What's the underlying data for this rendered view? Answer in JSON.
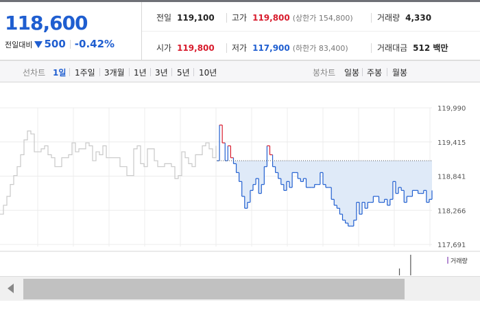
{
  "quote": {
    "price": "118,600",
    "change_label": "전일대비",
    "change_value": "500",
    "change_percent": "-0.42%",
    "change_direction": "down"
  },
  "stats": {
    "prev_close": {
      "label": "전일",
      "value": "119,100"
    },
    "open": {
      "label": "시가",
      "value": "119,800"
    },
    "high": {
      "label": "고가",
      "value": "119,800",
      "sub": "(상한가 154,800)"
    },
    "low": {
      "label": "저가",
      "value": "117,900",
      "sub": "(하한가 83,400)"
    },
    "volume": {
      "label": "거래량",
      "value": "4,330"
    },
    "trade_value": {
      "label": "거래대금",
      "value": "512 백만"
    }
  },
  "tabs": {
    "line_label": "선차트",
    "line_items": [
      "1일",
      "1주일",
      "3개월",
      "1년",
      "3년",
      "5년",
      "10년"
    ],
    "active": "1일",
    "candle_label": "봉차트",
    "candle_items": [
      "일봉",
      "주봉",
      "월봉"
    ]
  },
  "colors": {
    "up": "#d81b2c",
    "down": "#1f5ed0",
    "prev_line": "#c8c8c8",
    "fill_below": "#dfeaf8",
    "volume": "#b48cd2"
  },
  "chart_data": {
    "type": "line",
    "y_ticks": [
      "119,990",
      "119,415",
      "118,841",
      "118,266",
      "117,691"
    ],
    "ylim": [
      117691,
      119990
    ],
    "reference_line": 119100,
    "legend": [
      "거래량"
    ],
    "grid": true,
    "series": [
      {
        "values": [
          118200,
          118350,
          118500,
          118700,
          118850,
          119000,
          119200,
          119450,
          119600,
          119550,
          119250,
          119250,
          119300,
          119350,
          119200,
          119150,
          119000,
          119000,
          119150,
          119150,
          119200,
          119400,
          119250,
          119300,
          119300,
          119400,
          119350,
          119100,
          119250,
          119200,
          119350,
          119150,
          119150,
          119150,
          119150,
          119000,
          119000,
          118850,
          118850,
          119300,
          119350,
          119050,
          119000,
          119300,
          119300,
          119100,
          119000,
          119000,
          119050,
          119050,
          119000,
          118800,
          118850,
          119250,
          119150,
          119050,
          119000,
          119200,
          119200,
          119350,
          119400,
          119300,
          119150,
          119350
        ]
      },
      {
        "values": [
          119100,
          119700,
          119400,
          119100,
          119350,
          119150,
          119050,
          118900,
          118750,
          118500,
          118300,
          118400,
          118600,
          118700,
          118800,
          118550,
          118700,
          119000,
          119350,
          119200,
          119000,
          118900,
          118800,
          118700,
          118600,
          118750,
          118650,
          118900,
          118900,
          118800,
          118750,
          118800,
          118650,
          118650,
          118650,
          118700,
          118700,
          118900,
          118700,
          118650,
          118650,
          118450,
          118350,
          118300,
          118200,
          118100,
          118050,
          118000,
          118000,
          118100,
          118400,
          118200,
          118400,
          118300,
          118400,
          118400,
          118500,
          118500,
          118400,
          118400,
          118450,
          118350,
          118450,
          118750,
          118550,
          118650,
          118600,
          118400,
          118500,
          118500,
          118600,
          118600,
          118550,
          118550,
          118600,
          118400,
          118450,
          118600
        ]
      }
    ],
    "volume": [
      0,
      0,
      0,
      0,
      0,
      0,
      0,
      0,
      0,
      0,
      0,
      0,
      0,
      0,
      0,
      0,
      0,
      0,
      0,
      0,
      0,
      0,
      0,
      0,
      0,
      0,
      0,
      0,
      0,
      0,
      0,
      0,
      0,
      0,
      0,
      0,
      0,
      0,
      0,
      0,
      0,
      0,
      0,
      0,
      0,
      0,
      0,
      0,
      0,
      0,
      0,
      0,
      0,
      0,
      0,
      0,
      0,
      0,
      0,
      0,
      0,
      0,
      0,
      0,
      0,
      0,
      0,
      0,
      0,
      0,
      0,
      0,
      0,
      0,
      0,
      0,
      0,
      0,
      0,
      0,
      0,
      0,
      0,
      0,
      0,
      0,
      0,
      0,
      0,
      0,
      0,
      0,
      0,
      0,
      0,
      0,
      0,
      0,
      0,
      0,
      0,
      0,
      0,
      0,
      0,
      0,
      0,
      0,
      0,
      0,
      0,
      0,
      0,
      0,
      0,
      0,
      0,
      0,
      0,
      0,
      0,
      0,
      0,
      0,
      0,
      0,
      0,
      0,
      0,
      0,
      0,
      0,
      0,
      0,
      0,
      0,
      0,
      0,
      0,
      0,
      0,
      0,
      1,
      0,
      0,
      0,
      3,
      0,
      0,
      0,
      0,
      0,
      0,
      0
    ]
  }
}
